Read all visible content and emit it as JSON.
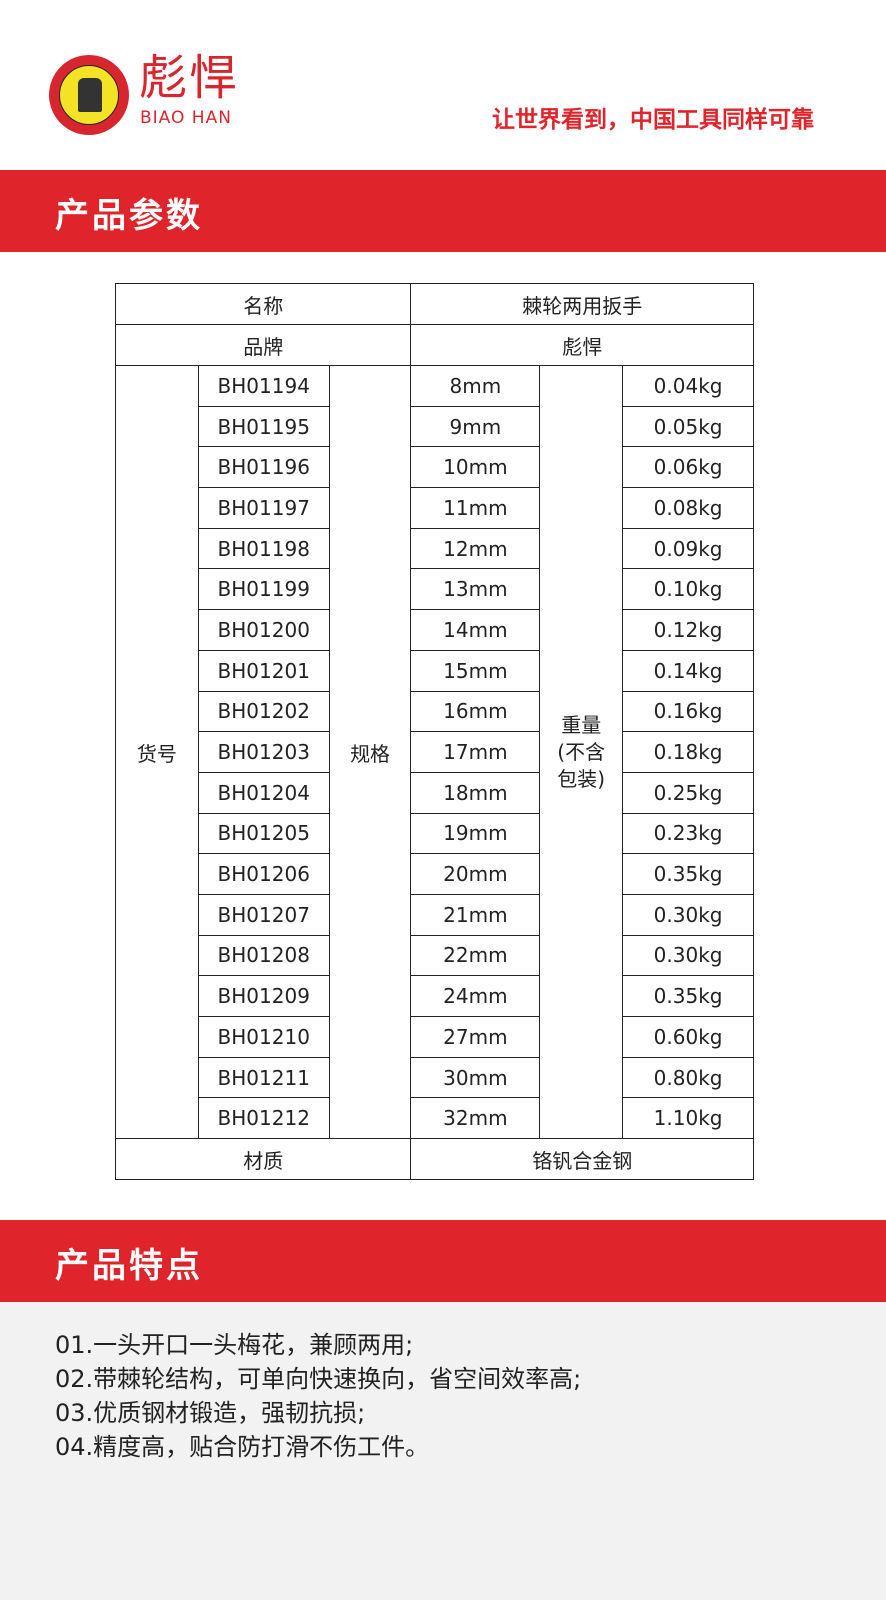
{
  "header": {
    "brand_cn": "彪悍",
    "brand_en": "BIAO HAN",
    "slogan": "让世界看到，中国工具同样可靠",
    "logo_icon": "brand-emblem-icon"
  },
  "colors": {
    "accent": "#e0242c",
    "logo_yellow": "#f4e225",
    "features_bg": "#f2f2f2"
  },
  "params_section": {
    "title": "产品参数",
    "name_label": "名称",
    "name_value": "棘轮两用扳手",
    "brand_label": "品牌",
    "brand_value": "彪悍",
    "model_label": "货号",
    "spec_label": "规格",
    "weight_label": "重量(不含包装)",
    "material_label": "材质",
    "material_value": "铬钒合金钢",
    "rows": [
      {
        "model": "BH01194",
        "spec": "8mm",
        "weight": "0.04kg"
      },
      {
        "model": "BH01195",
        "spec": "9mm",
        "weight": "0.05kg"
      },
      {
        "model": "BH01196",
        "spec": "10mm",
        "weight": "0.06kg"
      },
      {
        "model": "BH01197",
        "spec": "11mm",
        "weight": "0.08kg"
      },
      {
        "model": "BH01198",
        "spec": "12mm",
        "weight": "0.09kg"
      },
      {
        "model": "BH01199",
        "spec": "13mm",
        "weight": "0.10kg"
      },
      {
        "model": "BH01200",
        "spec": "14mm",
        "weight": "0.12kg"
      },
      {
        "model": "BH01201",
        "spec": "15mm",
        "weight": "0.14kg"
      },
      {
        "model": "BH01202",
        "spec": "16mm",
        "weight": "0.16kg"
      },
      {
        "model": "BH01203",
        "spec": "17mm",
        "weight": "0.18kg"
      },
      {
        "model": "BH01204",
        "spec": "18mm",
        "weight": "0.25kg"
      },
      {
        "model": "BH01205",
        "spec": "19mm",
        "weight": "0.23kg"
      },
      {
        "model": "BH01206",
        "spec": "20mm",
        "weight": "0.35kg"
      },
      {
        "model": "BH01207",
        "spec": "21mm",
        "weight": "0.30kg"
      },
      {
        "model": "BH01208",
        "spec": "22mm",
        "weight": "0.30kg"
      },
      {
        "model": "BH01209",
        "spec": "24mm",
        "weight": "0.35kg"
      },
      {
        "model": "BH01210",
        "spec": "27mm",
        "weight": "0.60kg"
      },
      {
        "model": "BH01211",
        "spec": "30mm",
        "weight": "0.80kg"
      },
      {
        "model": "BH01212",
        "spec": "32mm",
        "weight": "1.10kg"
      }
    ]
  },
  "features_section": {
    "title": "产品特点",
    "items": [
      "01.一头开口一头梅花，兼顾两用;",
      "02.带棘轮结构，可单向快速换向，省空间效率高;",
      "03.优质钢材锻造，强韧抗损;",
      "04.精度高，贴合防打滑不伤工件。"
    ]
  }
}
